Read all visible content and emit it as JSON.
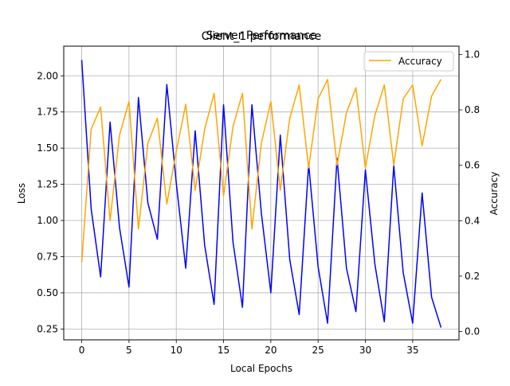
{
  "chart_data": {
    "type": "line",
    "titles": [
      "Client_1 performance",
      "Server Performance"
    ],
    "xlabel": "Local Epochs",
    "ylabel_left": "Loss",
    "ylabel_right": "Accuracy",
    "xlim": [
      -1.9,
      39.9
    ],
    "ylim_left": [
      0.175,
      2.205
    ],
    "ylim_right": [
      -0.03,
      1.03
    ],
    "xticks": [
      0,
      5,
      10,
      15,
      20,
      25,
      30,
      35
    ],
    "xtick_labels": [
      "0",
      "5",
      "10",
      "15",
      "20",
      "25",
      "30",
      "35"
    ],
    "yticks_left": [
      0.25,
      0.5,
      0.75,
      1.0,
      1.25,
      1.5,
      1.75,
      2.0
    ],
    "ytick_labels_left": [
      "0.25",
      "0.50",
      "0.75",
      "1.00",
      "1.25",
      "1.50",
      "1.75",
      "2.00"
    ],
    "yticks_right": [
      0.0,
      0.2,
      0.4,
      0.6,
      0.8,
      1.0
    ],
    "ytick_labels_right": [
      "0.0",
      "0.2",
      "0.4",
      "0.6",
      "0.8",
      "1.0"
    ],
    "grid": true,
    "legend_position": "top-right",
    "x": [
      0,
      1,
      2,
      3,
      4,
      5,
      6,
      7,
      8,
      9,
      10,
      11,
      12,
      13,
      14,
      15,
      16,
      17,
      18,
      19,
      20,
      21,
      22,
      23,
      24,
      25,
      26,
      27,
      28,
      29,
      30,
      31,
      32,
      33,
      34,
      35,
      36,
      37,
      38
    ],
    "series": [
      {
        "axis": "left",
        "color": "#0000ff",
        "values": [
          2.11,
          1.08,
          0.61,
          1.68,
          0.95,
          0.54,
          1.85,
          1.12,
          0.87,
          1.94,
          1.26,
          0.67,
          1.62,
          0.83,
          0.42,
          1.8,
          0.85,
          0.4,
          1.8,
          1.05,
          0.5,
          1.59,
          0.73,
          0.35,
          1.39,
          0.68,
          0.29,
          1.43,
          0.67,
          0.37,
          1.35,
          0.7,
          0.3,
          1.38,
          0.64,
          0.29,
          1.19,
          0.47,
          0.26
        ]
      },
      {
        "axis": "right",
        "name": "Accuracy",
        "color": "#ffa500",
        "values": [
          0.25,
          0.73,
          0.81,
          0.4,
          0.71,
          0.83,
          0.37,
          0.68,
          0.77,
          0.46,
          0.65,
          0.82,
          0.51,
          0.73,
          0.86,
          0.49,
          0.74,
          0.86,
          0.37,
          0.68,
          0.83,
          0.51,
          0.77,
          0.89,
          0.59,
          0.84,
          0.91,
          0.6,
          0.79,
          0.88,
          0.59,
          0.78,
          0.89,
          0.6,
          0.84,
          0.89,
          0.67,
          0.85,
          0.91
        ]
      }
    ]
  }
}
